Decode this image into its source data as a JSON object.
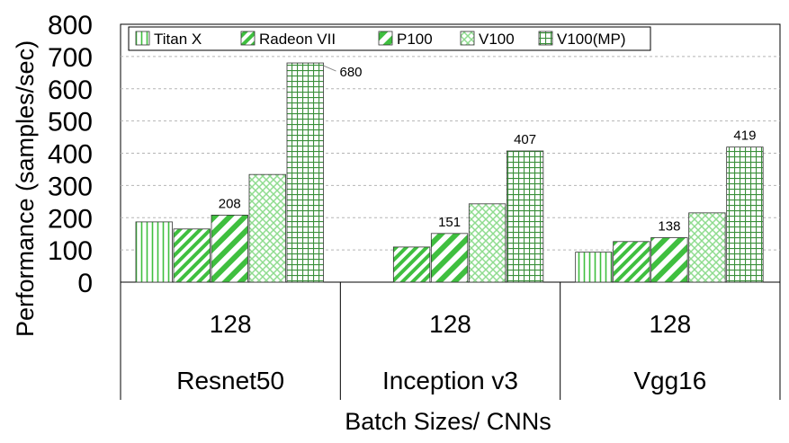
{
  "chart_data": {
    "type": "bar",
    "ylabel": "Performance (samples/sec)",
    "xlabel": "Batch Sizes/ CNNs",
    "ylim": [
      0,
      800
    ],
    "yticks": [
      0,
      100,
      200,
      300,
      400,
      500,
      600,
      700,
      800
    ],
    "grid": true,
    "legend_position": "top",
    "categories": [
      "Resnet50",
      "Inception v3",
      "Vgg16"
    ],
    "batch_sizes": [
      "128",
      "128",
      "128"
    ],
    "series": [
      {
        "name": "Titan X",
        "values": [
          187,
          null,
          93
        ],
        "pattern": "vertical-lines",
        "color": "#3fbf3f"
      },
      {
        "name": "Radeon VII",
        "values": [
          165,
          109,
          126
        ],
        "pattern": "diagonal-stripes",
        "color": "#3fbf3f"
      },
      {
        "name": "P100",
        "values": [
          208,
          151,
          138
        ],
        "pattern": "wide-diagonal-stripes",
        "color": "#3fbf3f"
      },
      {
        "name": "V100",
        "values": [
          334,
          243,
          215
        ],
        "pattern": "crosshatch",
        "color": "#8fdc8f"
      },
      {
        "name": "V100(MP)",
        "values": [
          680,
          407,
          419
        ],
        "pattern": "grid",
        "color": "#3a8f3a"
      }
    ],
    "data_labels": [
      {
        "series": 2,
        "category": 0,
        "text": "208"
      },
      {
        "series": 4,
        "category": 0,
        "text": "680"
      },
      {
        "series": 2,
        "category": 1,
        "text": "151"
      },
      {
        "series": 4,
        "category": 1,
        "text": "407"
      },
      {
        "series": 2,
        "category": 2,
        "text": "138"
      },
      {
        "series": 4,
        "category": 2,
        "text": "419"
      }
    ]
  }
}
